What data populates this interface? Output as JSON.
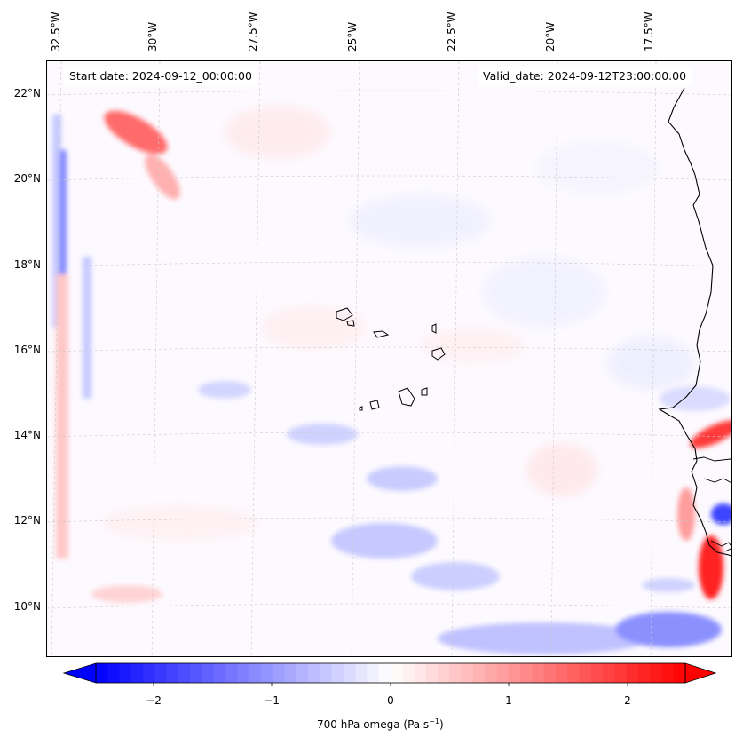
{
  "header": {
    "start_date": "Start date: 2024-09-12_00:00:00",
    "valid_date": "Valid_date: 2024-09-12T23:00:00.00"
  },
  "map": {
    "lon_ticks": [
      "32.5°W",
      "30°W",
      "27.5°W",
      "25°W",
      "22.5°W",
      "20°W",
      "17.5°W"
    ],
    "lat_ticks": [
      "22°N",
      "20°N",
      "18°N",
      "16°N",
      "14°N",
      "12°N",
      "10°N"
    ],
    "field_variable": "700 hPa omega"
  },
  "colorbar": {
    "ticks": [
      "−2",
      "−1",
      "0",
      "1",
      "2"
    ],
    "label_main": "700 hPa omega (Pa s",
    "label_exp": "−1",
    "label_close": ")",
    "min": -2.5,
    "max": 2.5,
    "colors": {
      "negative": "#0000ff",
      "zero": "#ffffff",
      "positive": "#ff0000"
    }
  }
}
